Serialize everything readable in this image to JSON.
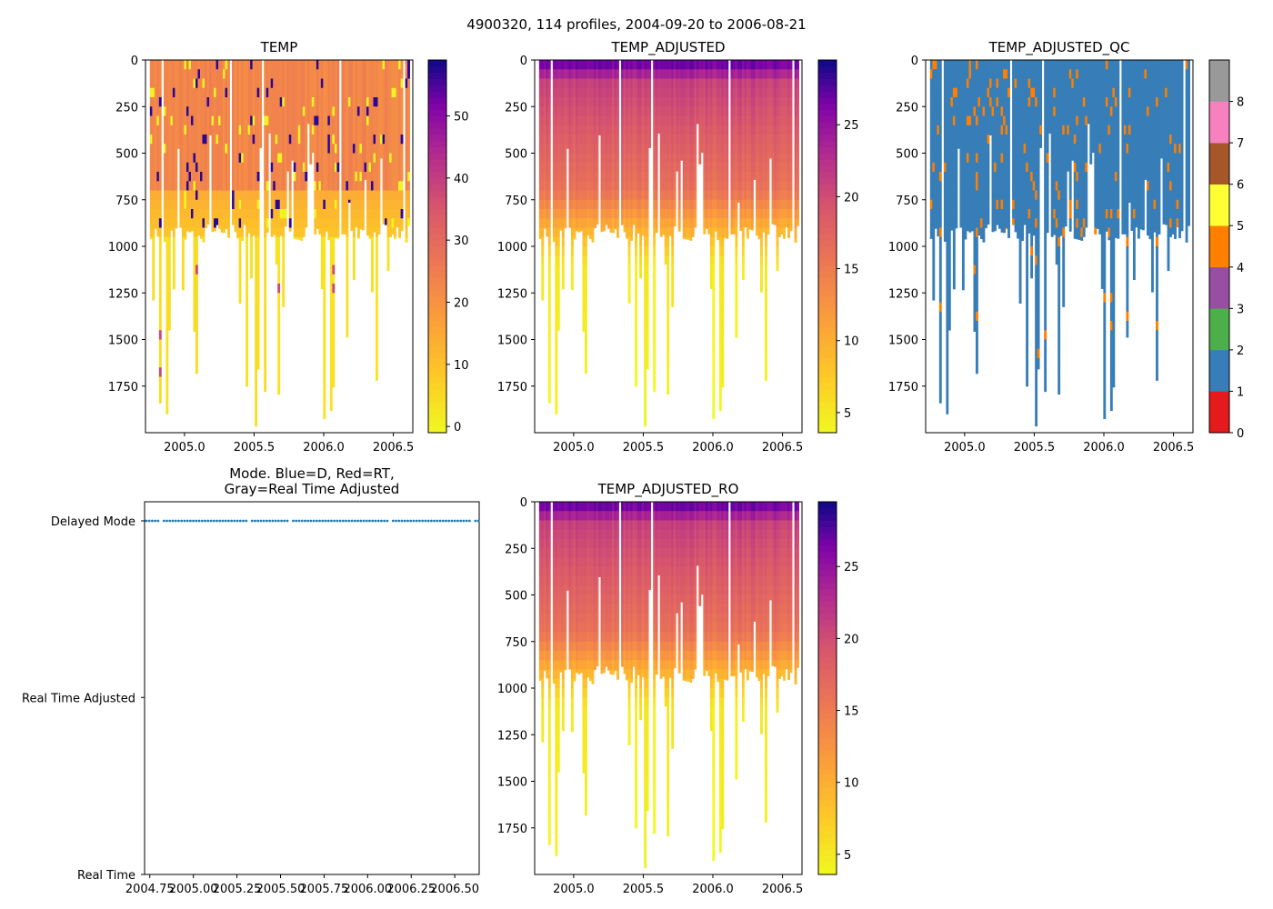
{
  "figure": {
    "suptitle": "4900320, 114 profiles, 2004-09-20 to 2006-08-21"
  },
  "chart_data": [
    {
      "id": "temp",
      "type": "heatmap",
      "title": "TEMP",
      "xlim": [
        2004.72,
        2006.64
      ],
      "ylim": [
        2000,
        0
      ],
      "xticks": [
        2005.0,
        2005.5,
        2006.0,
        2006.5
      ],
      "xtick_labels": [
        "2005.0",
        "2005.5",
        "2006.0",
        "2006.5"
      ],
      "yticks": [
        0,
        250,
        500,
        750,
        1000,
        1250,
        1500,
        1750
      ],
      "ytick_labels": [
        "0",
        "250",
        "500",
        "750",
        "1000",
        "1250",
        "1500",
        "1750"
      ],
      "colormap": "plasma_r",
      "clim": [
        -1,
        59
      ],
      "colorbar_ticks": [
        0,
        10,
        20,
        30,
        40,
        50
      ],
      "colorbar_labels": [
        "0",
        "10",
        "20",
        "30",
        "40",
        "50"
      ],
      "typical_value_upper": 23,
      "typical_value_deep": 3
    },
    {
      "id": "temp_adj",
      "type": "heatmap",
      "title": "TEMP_ADJUSTED",
      "xlim": [
        2004.72,
        2006.64
      ],
      "ylim": [
        2000,
        0
      ],
      "xticks": [
        2005.0,
        2005.5,
        2006.0,
        2006.5
      ],
      "xtick_labels": [
        "2005.0",
        "2005.5",
        "2006.0",
        "2006.5"
      ],
      "yticks": [
        0,
        250,
        500,
        750,
        1000,
        1250,
        1500,
        1750
      ],
      "ytick_labels": [
        "0",
        "250",
        "500",
        "750",
        "1000",
        "1250",
        "1500",
        "1750"
      ],
      "colormap": "plasma_r",
      "clim": [
        3.6,
        29.5
      ],
      "colorbar_ticks": [
        5,
        10,
        15,
        20,
        25
      ],
      "colorbar_labels": [
        "5",
        "10",
        "15",
        "20",
        "25"
      ],
      "surface_value": 28,
      "deep_value": 3.8
    },
    {
      "id": "temp_qc",
      "type": "heatmap",
      "title": "TEMP_ADJUSTED_QC",
      "xlim": [
        2004.72,
        2006.64
      ],
      "ylim": [
        2000,
        0
      ],
      "xticks": [
        2005.0,
        2005.5,
        2006.0,
        2006.5
      ],
      "xtick_labels": [
        "2005.0",
        "2005.5",
        "2006.0",
        "2006.5"
      ],
      "yticks": [
        0,
        250,
        500,
        750,
        1000,
        1250,
        1500,
        1750
      ],
      "ytick_labels": [
        "0",
        "250",
        "500",
        "750",
        "1000",
        "1250",
        "1500",
        "1750"
      ],
      "categories": [
        "0",
        "1",
        "2",
        "3",
        "4",
        "5",
        "6",
        "7",
        "8"
      ],
      "category_colors": [
        "#e41a1c",
        "#377eb8",
        "#4daf4a",
        "#984ea3",
        "#ff7f00",
        "#ffff33",
        "#a65628",
        "#f781bf",
        "#999999"
      ],
      "colorbar_labels": [
        "0",
        "1",
        "2",
        "3",
        "4",
        "5",
        "6",
        "7",
        "8"
      ],
      "dominant_flag": 1,
      "secondary_flag": 4
    },
    {
      "id": "mode",
      "type": "scatter",
      "title_line1": "Mode. Blue=D, Red=RT,",
      "title_line2": "Gray=Real Time Adjusted",
      "xlim": [
        2004.72,
        2006.64
      ],
      "xticks": [
        2004.75,
        2005.0,
        2005.25,
        2005.5,
        2005.75,
        2006.0,
        2006.25,
        2006.5
      ],
      "xtick_labels": [
        "2004.75",
        "2005.00",
        "2005.25",
        "2005.50",
        "2005.75",
        "2006.00",
        "2006.25",
        "2006.50"
      ],
      "ycategories": [
        "Real Time",
        "Real Time Adjusted",
        "Delayed Mode"
      ],
      "mode_value": "Delayed Mode",
      "point_color": "#1f77b4",
      "profile_count": 114
    },
    {
      "id": "temp_ro",
      "type": "heatmap",
      "title": "TEMP_ADJUSTED_RO",
      "xlim": [
        2004.72,
        2006.64
      ],
      "ylim": [
        2000,
        0
      ],
      "xticks": [
        2005.0,
        2005.5,
        2006.0,
        2006.5
      ],
      "xtick_labels": [
        "2005.0",
        "2005.5",
        "2006.0",
        "2006.5"
      ],
      "yticks": [
        0,
        250,
        500,
        750,
        1000,
        1250,
        1500,
        1750
      ],
      "ytick_labels": [
        "0",
        "250",
        "500",
        "750",
        "1000",
        "1250",
        "1500",
        "1750"
      ],
      "colormap": "plasma_r",
      "clim": [
        3.6,
        29.5
      ],
      "colorbar_ticks": [
        5,
        10,
        15,
        20,
        25
      ],
      "colorbar_labels": [
        "5",
        "10",
        "15",
        "20",
        "25"
      ],
      "surface_value": 28,
      "deep_value": 3.8
    }
  ]
}
